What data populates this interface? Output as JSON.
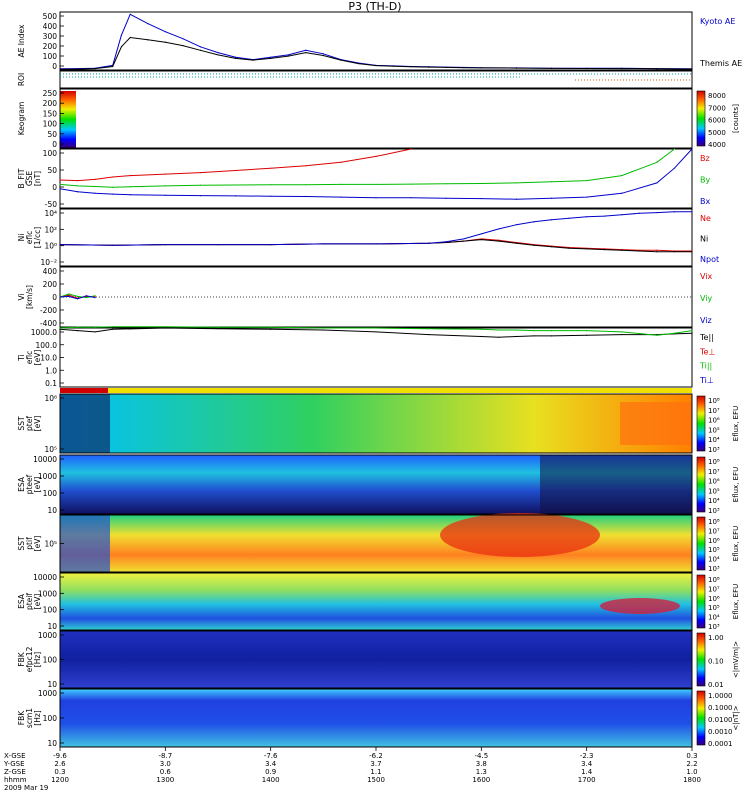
{
  "title": "P3 (TH-D)",
  "colors": {
    "kyoto": "#0000cc",
    "themis": "#000000",
    "red": "#dd0000",
    "green": "#00bb00",
    "blue": "#0000cc",
    "black": "#000000"
  },
  "panels": [
    {
      "key": "ae",
      "ylabel": [
        "AE Index"
      ],
      "yticks": [
        "500",
        "400",
        "300",
        "200",
        "100",
        "0"
      ],
      "labels": [
        {
          "text": "Kyoto AE",
          "color": "#0000cc"
        },
        {
          "text": "Themis AE",
          "color": "#000000"
        }
      ]
    },
    {
      "key": "roi",
      "ylabel": [
        "ROI"
      ],
      "yticks": [],
      "labels": []
    },
    {
      "key": "keogram",
      "ylabel": [
        "Keogram"
      ],
      "yticks": [
        "250",
        "200",
        "150",
        "100",
        "50",
        "0"
      ],
      "labels": [],
      "colorbar": {
        "ticks": [
          "8000",
          "7000",
          "6000",
          "5000",
          "4000"
        ],
        "label": "[counts]"
      }
    },
    {
      "key": "bfield",
      "ylabel": [
        "B_FIT",
        "GSE",
        "[nT]"
      ],
      "yticks": [
        "100",
        "50",
        "0",
        "-50"
      ],
      "labels": [
        {
          "text": "Bz",
          "color": "#dd0000"
        },
        {
          "text": "By",
          "color": "#00bb00"
        },
        {
          "text": "Bx",
          "color": "#0000cc"
        }
      ]
    },
    {
      "key": "ni",
      "ylabel": [
        "Ni",
        "eflc",
        "[1/cc]"
      ],
      "yticks": [
        "10⁴",
        "10²",
        "10⁰",
        "10⁻²"
      ],
      "labels": [
        {
          "text": "Ne",
          "color": "#dd0000"
        },
        {
          "text": "Ni",
          "color": "#000000"
        },
        {
          "text": "Npot",
          "color": "#0000cc"
        }
      ]
    },
    {
      "key": "vi",
      "ylabel": [
        "Vi",
        "[km/s]"
      ],
      "yticks": [
        "400",
        "200",
        "0",
        "-200",
        "-400"
      ],
      "labels": [
        {
          "text": "Vix",
          "color": "#dd0000"
        },
        {
          "text": "Viy",
          "color": "#00bb00"
        },
        {
          "text": "Viz",
          "color": "#0000cc"
        }
      ]
    },
    {
      "key": "ti",
      "ylabel": [
        "Ti",
        "eflc",
        "[eV]"
      ],
      "yticks": [
        "1000.0",
        "100.0",
        "10.0",
        "1.0",
        "0.1"
      ],
      "labels": [
        {
          "text": "Te||",
          "color": "#000000"
        },
        {
          "text": "Te⊥",
          "color": "#dd0000"
        },
        {
          "text": "Ti||",
          "color": "#00bb00"
        },
        {
          "text": "Ti⊥",
          "color": "#0000cc"
        }
      ]
    },
    {
      "key": "sst_e",
      "ylabel": [
        "SST",
        "ptef",
        "[eV]"
      ],
      "yticks": [
        "10⁶",
        "10⁵"
      ],
      "labels": [],
      "colorbar": {
        "ticks": [
          "10⁸",
          "10⁷",
          "10⁶",
          "10⁵",
          "10⁴",
          "10³"
        ],
        "label": "Eflux, EFU"
      }
    },
    {
      "key": "esa_e",
      "ylabel": [
        "ESA",
        "pteef",
        "[eV]"
      ],
      "yticks": [
        "10000",
        "1000",
        "100",
        "10"
      ],
      "labels": [],
      "colorbar": {
        "ticks": [
          "10⁸",
          "10⁷",
          "10⁶",
          "10⁵",
          "10⁴",
          "10³"
        ],
        "label": "Eflux, EFU"
      }
    },
    {
      "key": "sst_i",
      "ylabel": [
        "SST",
        "ptif",
        "[eV]"
      ],
      "yticks": [
        "10⁵"
      ],
      "labels": [],
      "colorbar": {
        "ticks": [
          "10⁸",
          "10⁷",
          "10⁶",
          "10⁵",
          "10⁴",
          "10³"
        ],
        "label": "Eflux, EFU"
      }
    },
    {
      "key": "esa_i",
      "ylabel": [
        "ESA",
        "pteif",
        "[eV]"
      ],
      "yticks": [
        "10000",
        "1000",
        "100",
        "10"
      ],
      "labels": [],
      "colorbar": {
        "ticks": [
          "10⁸",
          "10⁷",
          "10⁶",
          "10⁵",
          "10⁴",
          "10³"
        ],
        "label": "Eflux, EFU"
      }
    },
    {
      "key": "fbk_e",
      "ylabel": [
        "FBK",
        "efpc12",
        "[Hz]"
      ],
      "yticks": [
        "1000",
        "100",
        "10"
      ],
      "labels": [],
      "colorbar": {
        "ticks": [
          "1.00",
          "0.10",
          "0.01"
        ],
        "label": "<|mV/m|>"
      }
    },
    {
      "key": "fbk_b",
      "ylabel": [
        "FBK",
        "scm1",
        "[Hz]"
      ],
      "yticks": [
        "1000",
        "100",
        "10"
      ],
      "labels": [],
      "colorbar": {
        "ticks": [
          "1.0000",
          "0.1000",
          "0.0100",
          "0.0010",
          "0.0001"
        ],
        "label": "<|nT|>"
      }
    }
  ],
  "time_axis": {
    "row_labels": [
      "X-GSE",
      "Y-GSE",
      "Z-GSE",
      "hhmm",
      "2009 Mar 19"
    ],
    "ticks": [
      {
        "x": "-9.6",
        "y": "2.6",
        "z": "0.3",
        "t": "1200"
      },
      {
        "x": "-8.7",
        "y": "3.0",
        "z": "0.6",
        "t": "1300"
      },
      {
        "x": "-7.6",
        "y": "3.4",
        "z": "0.9",
        "t": "1400"
      },
      {
        "x": "-6.2",
        "y": "3.7",
        "z": "1.1",
        "t": "1500"
      },
      {
        "x": "-4.5",
        "y": "3.8",
        "z": "1.3",
        "t": "1600"
      },
      {
        "x": "-2.3",
        "y": "3.4",
        "z": "1.4",
        "t": "1700"
      },
      {
        "x": "0.3",
        "y": "2.2",
        "z": "1.0",
        "t": "1800"
      }
    ]
  },
  "chart_data": [
    {
      "type": "line",
      "title": "AE Index",
      "ylabel": "AE Index",
      "ylim": [
        0,
        500
      ],
      "x": [
        1200,
        1210,
        1220,
        1230,
        1235,
        1240,
        1250,
        1300,
        1310,
        1320,
        1330,
        1340,
        1350,
        1400,
        1410,
        1420,
        1430,
        1440,
        1450,
        1500,
        1510,
        1520,
        1530,
        1540,
        1550,
        1600,
        1620,
        1640,
        1700,
        1720,
        1740,
        1800
      ],
      "series": [
        {
          "name": "Kyoto AE",
          "color": "#0000cc",
          "values": [
            10,
            12,
            15,
            40,
            300,
            480,
            400,
            330,
            270,
            200,
            150,
            110,
            90,
            110,
            130,
            170,
            140,
            90,
            60,
            40,
            35,
            30,
            28,
            25,
            22,
            20,
            18,
            15,
            15,
            15,
            12,
            10
          ]
        },
        {
          "name": "Themis AE",
          "color": "#000000",
          "values": [
            5,
            8,
            12,
            30,
            200,
            280,
            260,
            240,
            210,
            170,
            130,
            100,
            85,
            100,
            120,
            150,
            125,
            85,
            55,
            38,
            32,
            28,
            25,
            22,
            20,
            18,
            16,
            14,
            13,
            12,
            10,
            8
          ]
        }
      ]
    },
    {
      "type": "line",
      "title": "B_FIT GSE",
      "ylabel": "B_FIT GSE [nT]",
      "ylim": [
        -75,
        125
      ],
      "x": [
        1200,
        1210,
        1220,
        1230,
        1240,
        1300,
        1320,
        1340,
        1400,
        1420,
        1440,
        1500,
        1520,
        1540,
        1600,
        1620,
        1640,
        1700,
        1720,
        1740,
        1750,
        1800
      ],
      "series": [
        {
          "name": "Bz",
          "color": "#dd0000",
          "values": [
            20,
            18,
            22,
            30,
            35,
            40,
            45,
            52,
            60,
            68,
            80,
            100,
            125,
            null,
            null,
            null,
            null,
            null,
            null,
            null,
            null,
            null
          ]
        },
        {
          "name": "By",
          "color": "#00bb00",
          "values": [
            5,
            0,
            -2,
            -5,
            -3,
            0,
            2,
            3,
            4,
            4,
            5,
            5,
            6,
            7,
            8,
            10,
            14,
            18,
            35,
            80,
            125,
            null
          ]
        },
        {
          "name": "Bx",
          "color": "#0000cc",
          "values": [
            -10,
            -20,
            -25,
            -28,
            -30,
            -32,
            -33,
            -34,
            -35,
            -36,
            -38,
            -40,
            -40,
            -42,
            -43,
            -45,
            -42,
            -38,
            -25,
            10,
            60,
            125
          ]
        }
      ]
    },
    {
      "type": "line",
      "title": "Ni",
      "ylabel": "Ni eflc [1/cc]",
      "ylim": [
        -3,
        5
      ],
      "yscale": "log10",
      "x": [
        1200,
        1230,
        1300,
        1330,
        1400,
        1430,
        1500,
        1530,
        1540,
        1550,
        1600,
        1610,
        1620,
        1630,
        1640,
        1650,
        1700,
        1710,
        1720,
        1730,
        1740,
        1750,
        1800
      ],
      "series": [
        {
          "name": "Ne",
          "color": "#dd0000",
          "values": [
            0,
            -0.1,
            0,
            0,
            0,
            0.1,
            0.1,
            0.2,
            0.3,
            0.5,
            0.8,
            0.6,
            0.3,
            0,
            -0.2,
            -0.4,
            -0.5,
            -0.6,
            -0.7,
            -0.8,
            -0.8,
            -0.9,
            -0.9
          ]
        },
        {
          "name": "Ni",
          "color": "#000000",
          "values": [
            0,
            -0.1,
            0,
            0,
            0,
            0.1,
            0.1,
            0.2,
            0.3,
            0.5,
            0.7,
            0.5,
            0.2,
            -0.1,
            -0.3,
            -0.5,
            -0.6,
            -0.7,
            -0.8,
            -0.9,
            -1.0,
            -1.0,
            -1.0
          ]
        },
        {
          "name": "Npot",
          "color": "#0000cc",
          "values": [
            0,
            -0.1,
            0,
            0,
            0,
            0.1,
            0.1,
            0.2,
            0.4,
            0.8,
            1.5,
            2.2,
            2.8,
            3.2,
            3.5,
            3.7,
            3.9,
            4.0,
            4.2,
            4.4,
            4.5,
            4.6,
            4.6
          ]
        }
      ]
    },
    {
      "type": "line",
      "title": "Vi",
      "ylabel": "Vi [km/s]",
      "ylim": [
        -500,
        500
      ],
      "x": [
        1200,
        1205,
        1210,
        1215,
        1220
      ],
      "series": [
        {
          "name": "Vix",
          "color": "#dd0000",
          "values": [
            0,
            30,
            -20,
            10,
            5
          ]
        },
        {
          "name": "Viy",
          "color": "#00bb00",
          "values": [
            0,
            50,
            10,
            -10,
            20
          ]
        },
        {
          "name": "Viz",
          "color": "#0000cc",
          "values": [
            0,
            10,
            -30,
            20,
            -10
          ]
        }
      ]
    },
    {
      "type": "line",
      "title": "Ti",
      "ylabel": "Ti eflc [eV]",
      "ylim": [
        -1,
        3.5
      ],
      "yscale": "log10",
      "x": [
        1200,
        1210,
        1220,
        1230,
        1300,
        1330,
        1400,
        1430,
        1500,
        1530,
        1600,
        1610,
        1620,
        1630,
        1640,
        1700,
        1720,
        1740,
        1750,
        1800
      ],
      "series": [
        {
          "name": "Te||",
          "color": "#000000",
          "values": [
            3.4,
            3.3,
            3.2,
            3.4,
            3.5,
            3.45,
            3.4,
            3.35,
            3.2,
            3.0,
            2.85,
            2.8,
            2.85,
            2.9,
            2.9,
            2.95,
            3.0,
            3.0,
            3.05,
            3.1
          ]
        },
        {
          "name": "Ti||",
          "color": "#00bb00",
          "values": [
            3.5,
            3.55,
            3.55,
            3.6,
            3.6,
            3.55,
            3.55,
            3.5,
            3.5,
            3.45,
            3.4,
            3.35,
            3.35,
            3.3,
            3.3,
            3.3,
            3.2,
            2.95,
            3.1,
            3.3
          ]
        }
      ]
    }
  ]
}
